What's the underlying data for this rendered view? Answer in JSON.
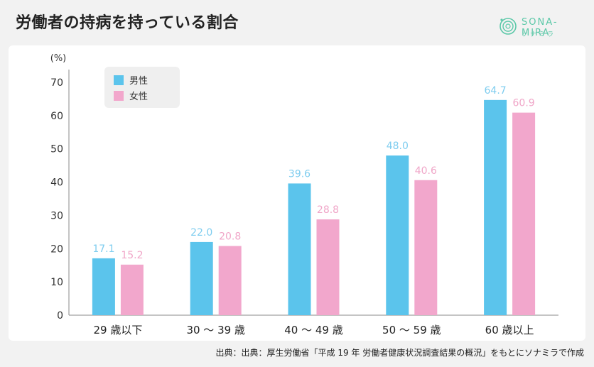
{
  "title": "労働者の持病を持っている割合",
  "logo": {
    "text": "SONA-MIRA",
    "sub": "ソナミラ",
    "icon": "sona-mira-logo-icon",
    "color": "#5bc8a8"
  },
  "source": "出典：出典：厚生労働省「平成 19 年 労働者健康状況調査結果の概況」をもとにソナミラで作成",
  "chart_data": {
    "type": "bar",
    "title": "",
    "ylabel": "(%)",
    "xlabel": "",
    "ylim": [
      0,
      70
    ],
    "yticks": [
      0,
      10,
      20,
      30,
      40,
      50,
      60,
      70
    ],
    "categories": [
      "29 歳以下",
      "30 〜 39 歳",
      "40 〜 49 歳",
      "50 〜 59 歳",
      "60 歳以上"
    ],
    "series": [
      {
        "name": "男性",
        "values": [
          17.1,
          22.0,
          39.6,
          48.0,
          64.7
        ],
        "color": "#5bc4ec",
        "label_color": "#7fcdef"
      },
      {
        "name": "女性",
        "values": [
          15.2,
          20.8,
          28.8,
          40.6,
          60.9
        ],
        "color": "#f2a7cc",
        "label_color": "#f0a6c8"
      }
    ],
    "legend_position": "top-left",
    "grid": false
  }
}
